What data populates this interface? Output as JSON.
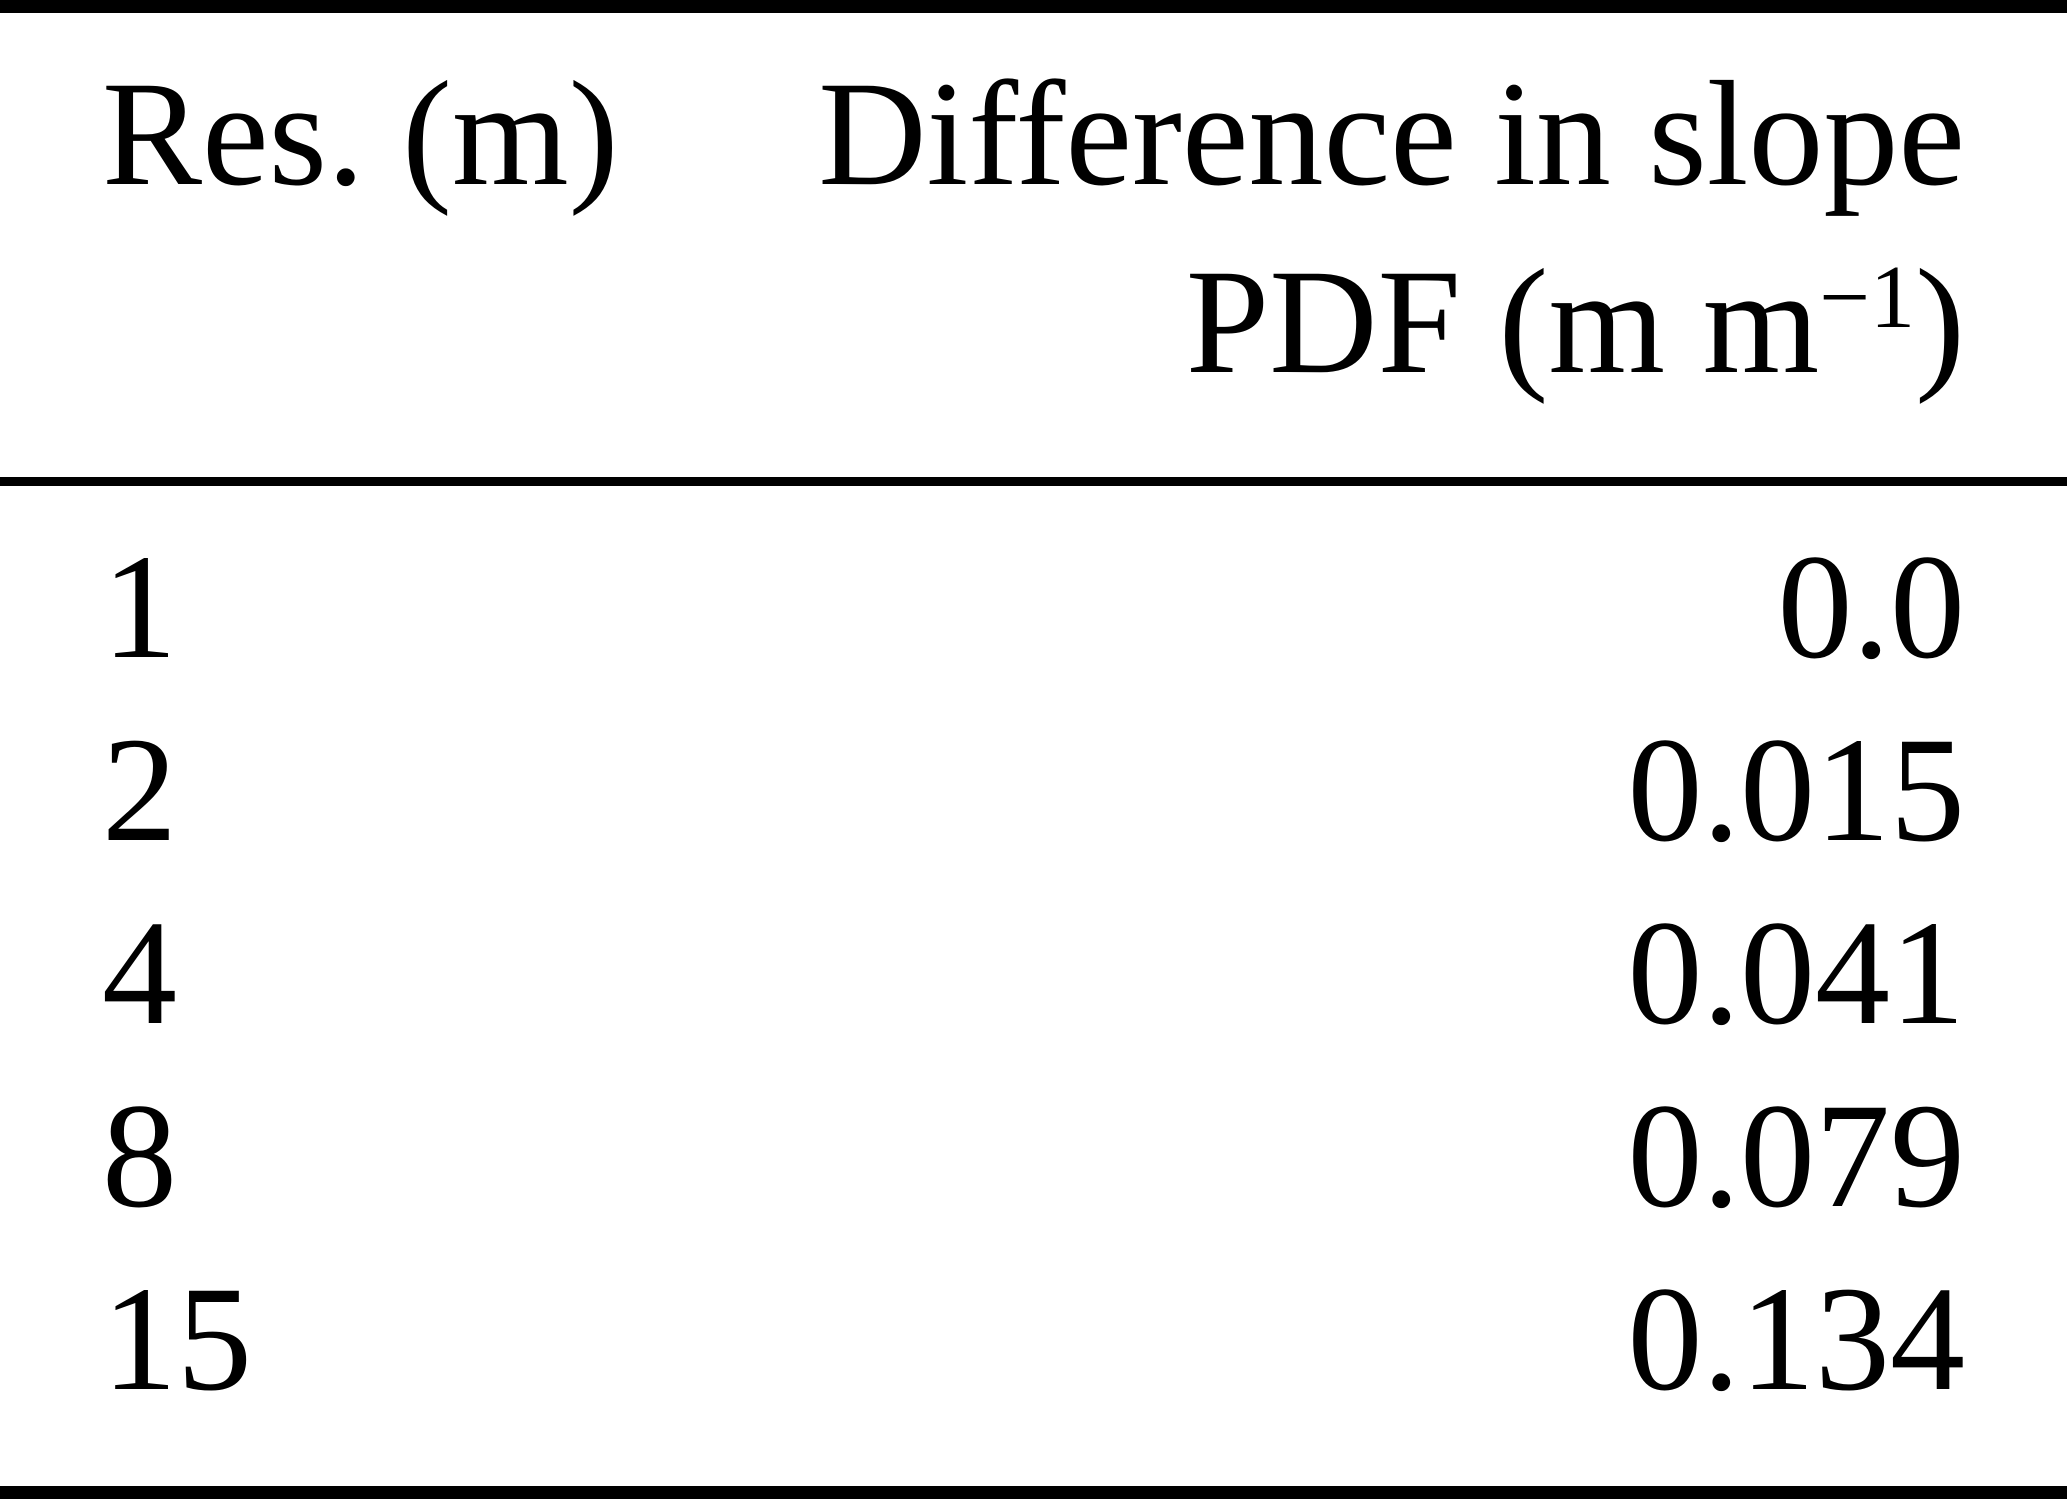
{
  "table": {
    "header": {
      "col1": "Res. (m)",
      "col2_line1": "Difference in slope",
      "col2_line2_base": "PDF (m m",
      "col2_line2_sup": "−1",
      "col2_line2_close": ")"
    },
    "rows": [
      {
        "res": "1",
        "diff": "0.0"
      },
      {
        "res": "2",
        "diff": "0.015"
      },
      {
        "res": "4",
        "diff": "0.041"
      },
      {
        "res": "8",
        "diff": "0.079"
      },
      {
        "res": "15",
        "diff": "0.134"
      }
    ]
  },
  "chart_data": {
    "type": "table",
    "columns": [
      "Res. (m)",
      "Difference in slope PDF (m m−1)"
    ],
    "rows": [
      [
        1,
        0.0
      ],
      [
        2,
        0.015
      ],
      [
        4,
        0.041
      ],
      [
        8,
        0.079
      ],
      [
        15,
        0.134
      ]
    ]
  },
  "colors": {
    "text": "#000000",
    "background": "#ffffff",
    "rule": "#000000"
  }
}
